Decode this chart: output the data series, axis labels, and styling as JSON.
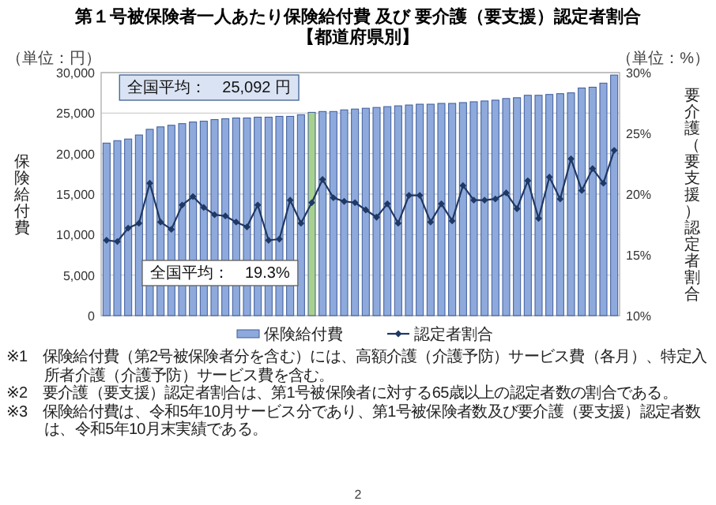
{
  "chart_data": {
    "type": "bar",
    "title": "第１号被保険者一人あたり保険給付費 及び 要介護（要支援）認定者割合",
    "subtitle": "【都道府県別】",
    "categories": [
      null,
      null,
      null,
      null,
      null,
      null,
      null,
      null,
      null,
      null,
      null,
      null,
      null,
      null,
      null,
      null,
      null,
      null,
      null,
      null,
      null,
      null,
      null,
      null,
      null,
      null,
      null,
      null,
      null,
      null,
      null,
      null,
      null,
      null,
      null,
      null,
      null,
      null,
      null,
      null,
      null,
      null,
      null,
      null,
      null,
      null,
      null,
      null
    ],
    "series": [
      {
        "name": "保険給付費",
        "colors": [
          "#8eaadc",
          "#8eaadc",
          "#8eaadc",
          "#8eaadc",
          "#8eaadc",
          "#8eaadc",
          "#8eaadc",
          "#8eaadc",
          "#8eaadc",
          "#8eaadc",
          "#8eaadc",
          "#8eaadc",
          "#8eaadc",
          "#8eaadc",
          "#8eaadc",
          "#8eaadc",
          "#8eaadc",
          "#8eaadc",
          "#8eaadc",
          "#a9d18e",
          "#8eaadc",
          "#8eaadc",
          "#8eaadc",
          "#8eaadc",
          "#8eaadc",
          "#8eaadc",
          "#8eaadc",
          "#8eaadc",
          "#8eaadc",
          "#8eaadc",
          "#8eaadc",
          "#8eaadc",
          "#8eaadc",
          "#8eaadc",
          "#8eaadc",
          "#8eaadc",
          "#8eaadc",
          "#8eaadc",
          "#8eaadc",
          "#8eaadc",
          "#8eaadc",
          "#8eaadc",
          "#8eaadc",
          "#8eaadc",
          "#8eaadc",
          "#8eaadc",
          "#8eaadc",
          "#8eaadc"
        ],
        "values": [
          21300,
          21600,
          21800,
          22300,
          23000,
          23300,
          23500,
          23700,
          23900,
          24000,
          24200,
          24300,
          24400,
          24400,
          24500,
          24500,
          24600,
          24600,
          24800,
          25092,
          25200,
          25200,
          25400,
          25500,
          25600,
          25700,
          25800,
          25900,
          26000,
          26100,
          26100,
          26200,
          26200,
          26300,
          26400,
          26500,
          26600,
          26800,
          26900,
          27200,
          27200,
          27300,
          27400,
          27500,
          28100,
          28200,
          28700,
          29700
        ]
      },
      {
        "name": "認定者割合",
        "type": "line",
        "axis": "y2",
        "color": "#1f3864",
        "values": [
          16.2,
          16.1,
          17.2,
          17.6,
          20.9,
          17.7,
          17.1,
          19.1,
          19.8,
          18.9,
          18.3,
          18.2,
          17.7,
          17.3,
          19.1,
          16.2,
          16.3,
          19.5,
          17.6,
          19.3,
          21.2,
          19.7,
          19.4,
          19.3,
          18.7,
          18.1,
          19.2,
          17.6,
          19.9,
          19.9,
          17.7,
          19.2,
          17.8,
          20.7,
          19.5,
          19.5,
          19.6,
          20.1,
          18.8,
          21.1,
          18.0,
          21.4,
          19.6,
          22.9,
          20.3,
          22.1,
          20.9,
          23.6
        ]
      }
    ],
    "ylim": [
      0,
      30000
    ],
    "yticks": [
      0,
      {
        "value": 5000,
        "label": "5,000"
      },
      {
        "value": 10000,
        "label": "10,000"
      },
      {
        "value": 15000,
        "label": "15,000"
      },
      {
        "value": 20000,
        "label": "20,000"
      },
      {
        "value": 25000,
        "label": "25,000"
      },
      {
        "value": 30000,
        "label": "30,000"
      }
    ],
    "y2lim": [
      10,
      30
    ],
    "y2ticks": [
      {
        "value": 10,
        "label": "10%"
      },
      {
        "value": 15,
        "label": "15%"
      },
      {
        "value": 20,
        "label": "20%"
      },
      {
        "value": 25,
        "label": "25%"
      },
      {
        "value": 30,
        "label": "30%"
      }
    ],
    "ylabel": "保険給付費",
    "y2label": "要介護（要支援）認定者割合",
    "grid": "y",
    "legend": "bottom",
    "marker": "diamond",
    "annotations": [
      "（単位：円）",
      "（単位：%）",
      "全国平均：　25,092 円",
      "全国平均：　19.3%",
      "※1　保険給付費（第2号被保険者分を含む）には、高額介護（介護予防）サービス費（各月）、特定入所者介護（介護予防）サービス費を含む。",
      "※2　要介護（要支援）認定者割合は、第1号被保険者に対する65歳以上の認定者数の割合である。",
      "※3　保険給付費は、令和5年10月サービス分であり、第1号被保険者数及び要介護（要支援）認定者数は、令和5年10月末実績である。",
      "2"
    ]
  }
}
